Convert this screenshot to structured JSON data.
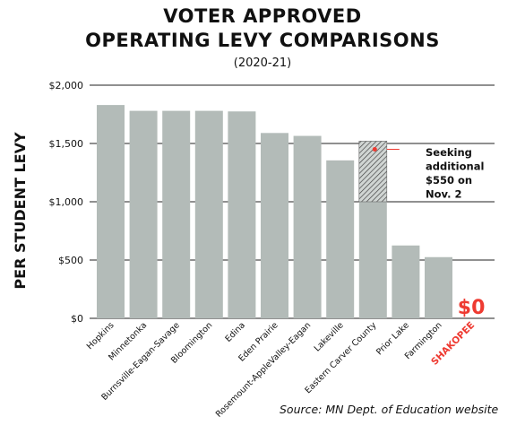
{
  "title_line1": "VOTER APPROVED",
  "title_line2": "OPERATING LEVY COMPARISONS",
  "subtitle": "(2020-21)",
  "source": "Source: MN Dept. of Education website",
  "colors": {
    "bar": "#b3bbb8",
    "highlight": "#ee3a31",
    "text": "#111111",
    "grid": "#222222"
  },
  "chart_data": {
    "type": "bar",
    "title": "VOTER APPROVED OPERATING LEVY COMPARISONS",
    "subtitle": "(2020-21)",
    "ylabel": "PER STUDENT LEVY",
    "xlabel": "",
    "ylim": [
      0,
      2000
    ],
    "yticks": [
      0,
      500,
      1000,
      1500,
      2000
    ],
    "ytick_labels": [
      "$0",
      "$500",
      "$1,000",
      "$1,500",
      "$2,000"
    ],
    "grid": true,
    "categories": [
      "Hopkins",
      "Minnetonka",
      "Burnsville-Eagan-Savage",
      "Bloomington",
      "Edina",
      "Eden Prairie",
      "Rosemount-AppleValley-Eagan",
      "Lakeville",
      "Eastern Carver County",
      "Prior Lake",
      "Farmington",
      "SHAKOPEE"
    ],
    "values": [
      1830,
      1780,
      1780,
      1780,
      1775,
      1590,
      1565,
      1355,
      1000,
      625,
      525,
      0
    ],
    "highlight_category": "SHAKOPEE",
    "highlight_value_label": "$0",
    "proposed": {
      "category": "Eastern Carver County",
      "from": 1000,
      "to": 1520
    },
    "annotation": [
      "Seeking",
      "additional",
      "$550 on",
      "Nov. 2"
    ]
  }
}
